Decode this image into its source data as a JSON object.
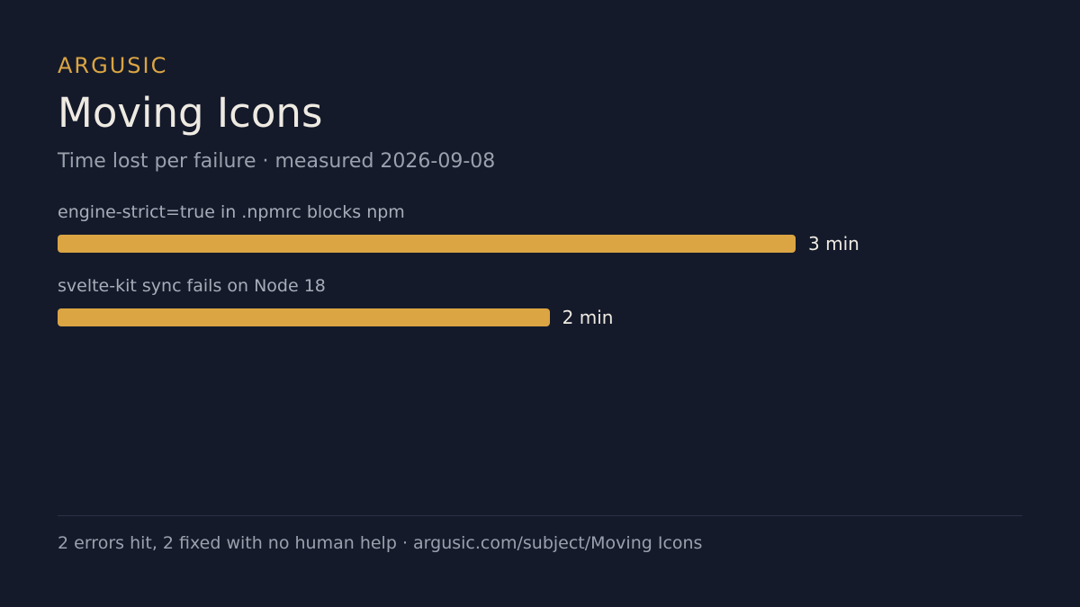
{
  "chart_data": {
    "type": "bar",
    "orientation": "horizontal",
    "brand": "ARGUSIC",
    "title": "Moving Icons",
    "subtitle": "Time lost per failure · measured 2026-09-08",
    "categories": [
      "engine-strict=true in .npmrc blocks npm",
      "svelte-kit sync fails on Node 18"
    ],
    "values": [
      3,
      2
    ],
    "value_labels": [
      "3 min",
      "2 min"
    ],
    "color": "#dba543",
    "footer": "2 errors hit, 2 fixed with no human help · argusic.com/subject/Moving Icons"
  }
}
